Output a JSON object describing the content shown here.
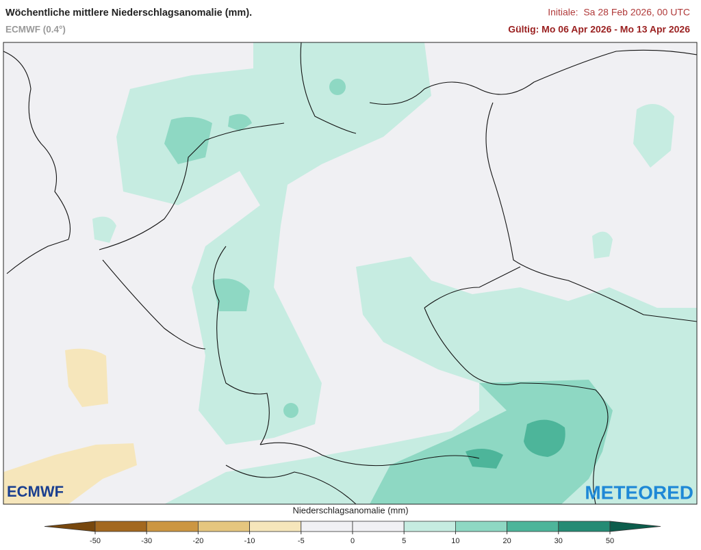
{
  "header": {
    "title": "Wöchentliche mittlere Niederschlagsanomalie (mm).",
    "model": "ECMWF (0.4°)",
    "initial": "Initiale:  Sa 28 Feb 2026, 00 UTC",
    "valid": "Gültig: Mo 06 Apr 2026 - Mo 13 Apr 2026"
  },
  "logos": {
    "left": "ECMWF",
    "right": "METEORED"
  },
  "colorbar": {
    "label": "Niederschlagsanomalie (mm)",
    "ticks": [
      -50,
      -30,
      -20,
      -10,
      -5,
      0,
      5,
      10,
      20,
      30,
      50
    ],
    "colors": [
      "#77470d",
      "#a3681f",
      "#cc9642",
      "#e5c67f",
      "#f6e6bb",
      "#f1f1f4",
      "#f1f1f4",
      "#c6ece1",
      "#8ed8c3",
      "#4db59a",
      "#258b74",
      "#0c5d4c"
    ]
  }
}
